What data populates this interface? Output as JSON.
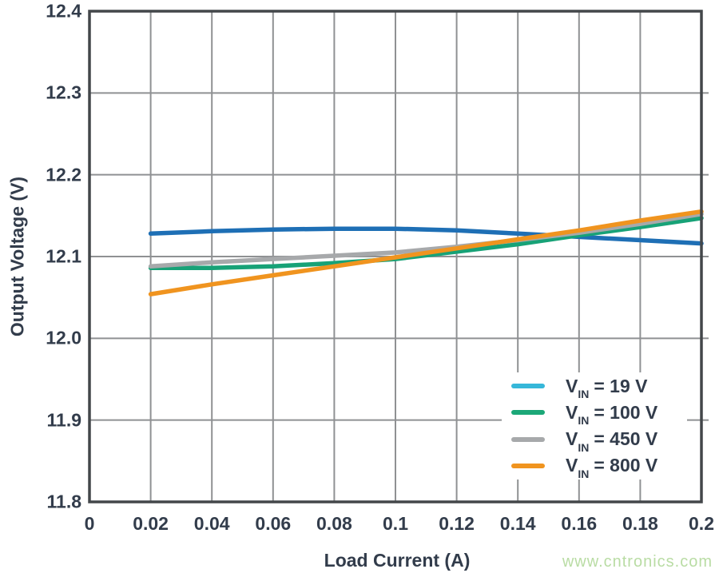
{
  "page": {
    "watermark": "www.cntronics.com"
  },
  "style": {
    "background": "#ffffff",
    "grid_color": "#8f9193",
    "border_color": "#43474a",
    "text_color": "#323c4b",
    "watermark_color": "#b9dca4"
  },
  "chart_data": {
    "type": "line",
    "title": "",
    "xlabel": "Load Current (A)",
    "ylabel": "Output Voltage (V)",
    "xlim": [
      0,
      0.2
    ],
    "ylim": [
      11.8,
      12.4
    ],
    "grid": true,
    "legend_position": "inside lower right",
    "x_ticks": [
      0,
      0.02,
      0.04,
      0.06,
      0.08,
      0.1,
      0.12,
      0.14,
      0.16,
      0.18,
      0.2
    ],
    "x_tick_labels": [
      "0",
      "0.02",
      "0.04",
      "0.06",
      "0.08",
      "0.1",
      "0.12",
      "0.14",
      "0.16",
      "0.18",
      "0.2"
    ],
    "y_ticks": [
      11.8,
      11.9,
      12.0,
      12.1,
      12.2,
      12.3,
      12.4
    ],
    "y_tick_labels": [
      "11.8",
      "11.9",
      "12.0",
      "12.1",
      "12.2",
      "12.3",
      "12.4"
    ],
    "x": [
      0.02,
      0.04,
      0.06,
      0.08,
      0.1,
      0.12,
      0.14,
      0.16,
      0.18,
      0.2
    ],
    "series": [
      {
        "name": "VIN = 19 V",
        "color": "#1e6fb5",
        "legend_color": "#36b7d9",
        "values": [
          12.128,
          12.131,
          12.133,
          12.134,
          12.134,
          12.132,
          12.128,
          12.124,
          12.12,
          12.116
        ]
      },
      {
        "name": "VIN = 100 V",
        "color": "#17a277",
        "legend_color": "#1ca878",
        "values": [
          12.086,
          12.086,
          12.088,
          12.092,
          12.097,
          12.106,
          12.115,
          12.126,
          12.136,
          12.147
        ]
      },
      {
        "name": "VIN = 450 V",
        "color": "#a7a9ab",
        "legend_color": "#a7a9ab",
        "values": [
          12.088,
          12.093,
          12.097,
          12.101,
          12.105,
          12.112,
          12.12,
          12.129,
          12.14,
          12.152
        ]
      },
      {
        "name": "VIN = 800 V",
        "color": "#f0941f",
        "legend_color": "#f0941f",
        "values": [
          12.054,
          12.066,
          12.077,
          12.088,
          12.099,
          12.11,
          12.121,
          12.132,
          12.144,
          12.155
        ]
      }
    ],
    "legend": {
      "items": [
        {
          "prefix": "V",
          "subscript": "IN",
          "suffix": "= 19 V"
        },
        {
          "prefix": "V",
          "subscript": "IN",
          "suffix": "= 100 V"
        },
        {
          "prefix": "V",
          "subscript": "IN",
          "suffix": "= 450 V"
        },
        {
          "prefix": "V",
          "subscript": "IN",
          "suffix": "= 800 V"
        }
      ]
    }
  }
}
